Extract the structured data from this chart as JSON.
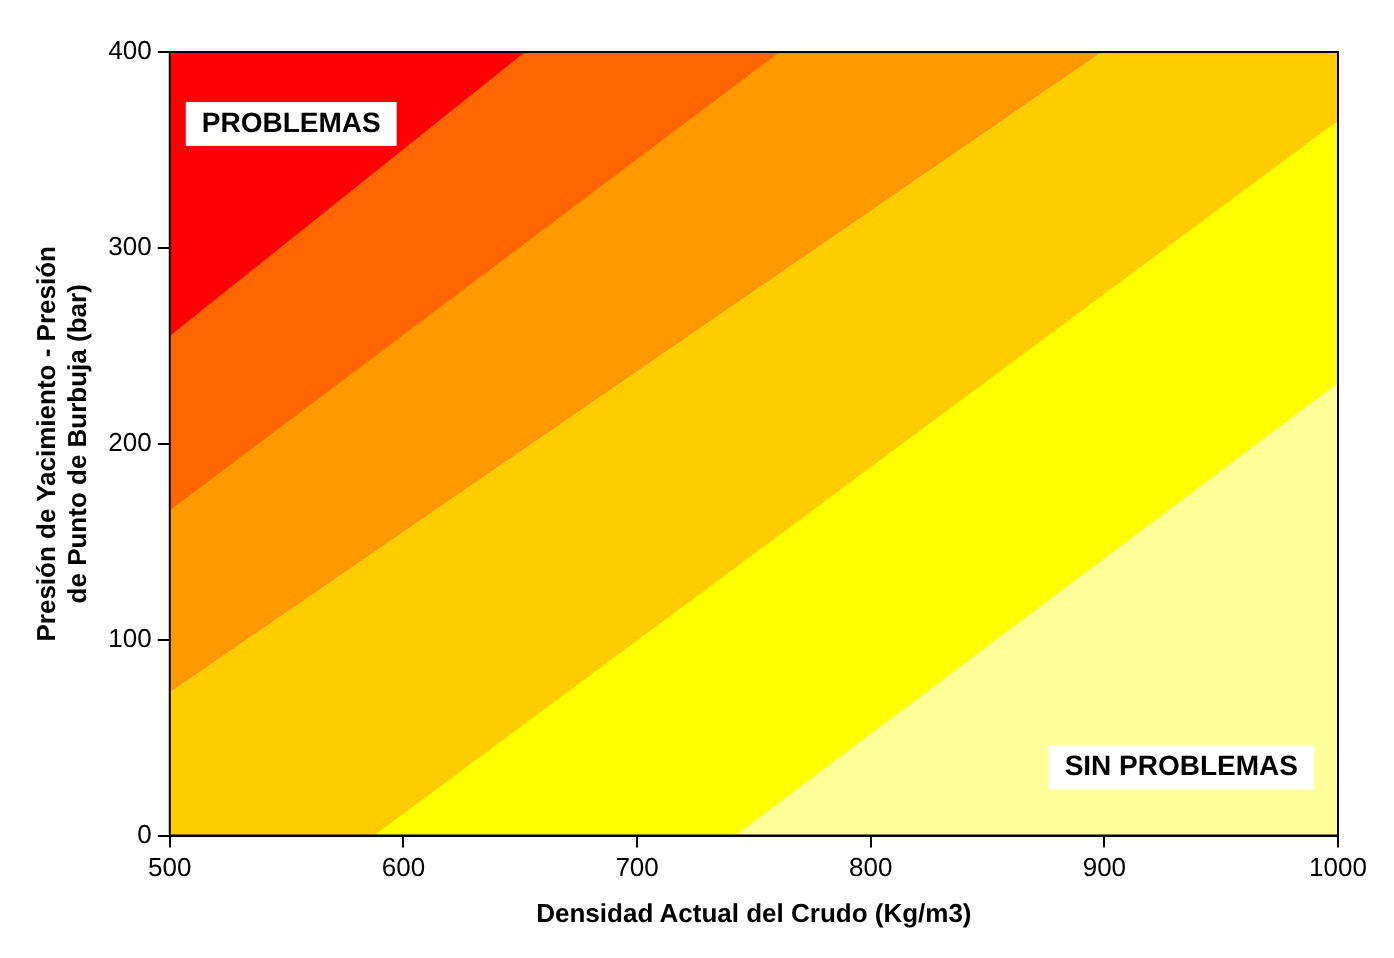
{
  "chart_data": {
    "type": "area",
    "xlabel": "Densidad Actual del Crudo (Kg/m3)",
    "ylabel": "Presión de Yacimiento - Presión de Punto de Burbuja (bar)",
    "series": [
      {
        "color": "#ff0000",
        "x": [
          500,
          652
        ],
        "values": [
          255,
          400
        ]
      },
      {
        "color": "#ff6600",
        "x": [
          500,
          761
        ],
        "values": [
          166,
          400
        ]
      },
      {
        "color": "#ff9900",
        "x": [
          500,
          899
        ],
        "values": [
          73,
          400
        ]
      },
      {
        "color": "#ffff99",
        "x": [
          742,
          1000
        ],
        "values": [
          0,
          231
        ]
      },
      {
        "color": "#ffff00",
        "x": [
          587.5,
          1000
        ],
        "values": [
          0,
          365
        ]
      },
      {
        "color": "#ffcc00",
        "x": [
          500,
          899,
          1000
        ],
        "values": [
          73,
          400,
          400
        ]
      }
    ],
    "xlim": [
      500,
      1000
    ],
    "xticks": [
      500,
      600,
      700,
      800,
      900,
      1000
    ],
    "ylim": [
      0,
      400
    ],
    "yticks": [
      0,
      100,
      200,
      300,
      400
    ],
    "annotations": [
      "PROBLEMAS",
      "SIN PROBLEMAS"
    ],
    "legend": false,
    "marker": "none"
  }
}
